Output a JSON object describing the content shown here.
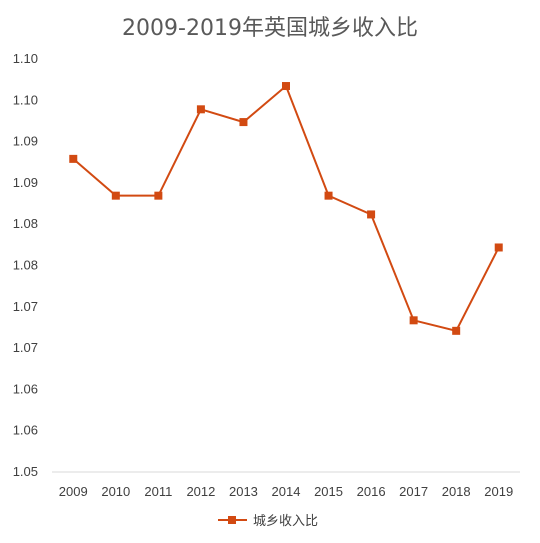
{
  "chart_data": {
    "type": "line",
    "title": "2009-2019年英国城乡收入比",
    "xlabel": "",
    "ylabel": "",
    "categories": [
      "2009",
      "2010",
      "2011",
      "2012",
      "2013",
      "2014",
      "2015",
      "2016",
      "2017",
      "2018",
      "2019"
    ],
    "y_tick_labels": [
      "1.05",
      "1.06",
      "1.06",
      "1.07",
      "1.07",
      "1.08",
      "1.08",
      "1.09",
      "1.09",
      "1.10",
      "1.10"
    ],
    "ylim": [
      1.05,
      1.105
    ],
    "series": [
      {
        "name": "城乡收入比",
        "color": "#D24A12",
        "values": [
          1.0917,
          1.0868,
          1.0868,
          1.0983,
          1.0966,
          1.1014,
          1.0868,
          1.0843,
          1.0702,
          1.0688,
          1.0799
        ]
      }
    ],
    "grid": false,
    "legend_position": "bottom"
  }
}
